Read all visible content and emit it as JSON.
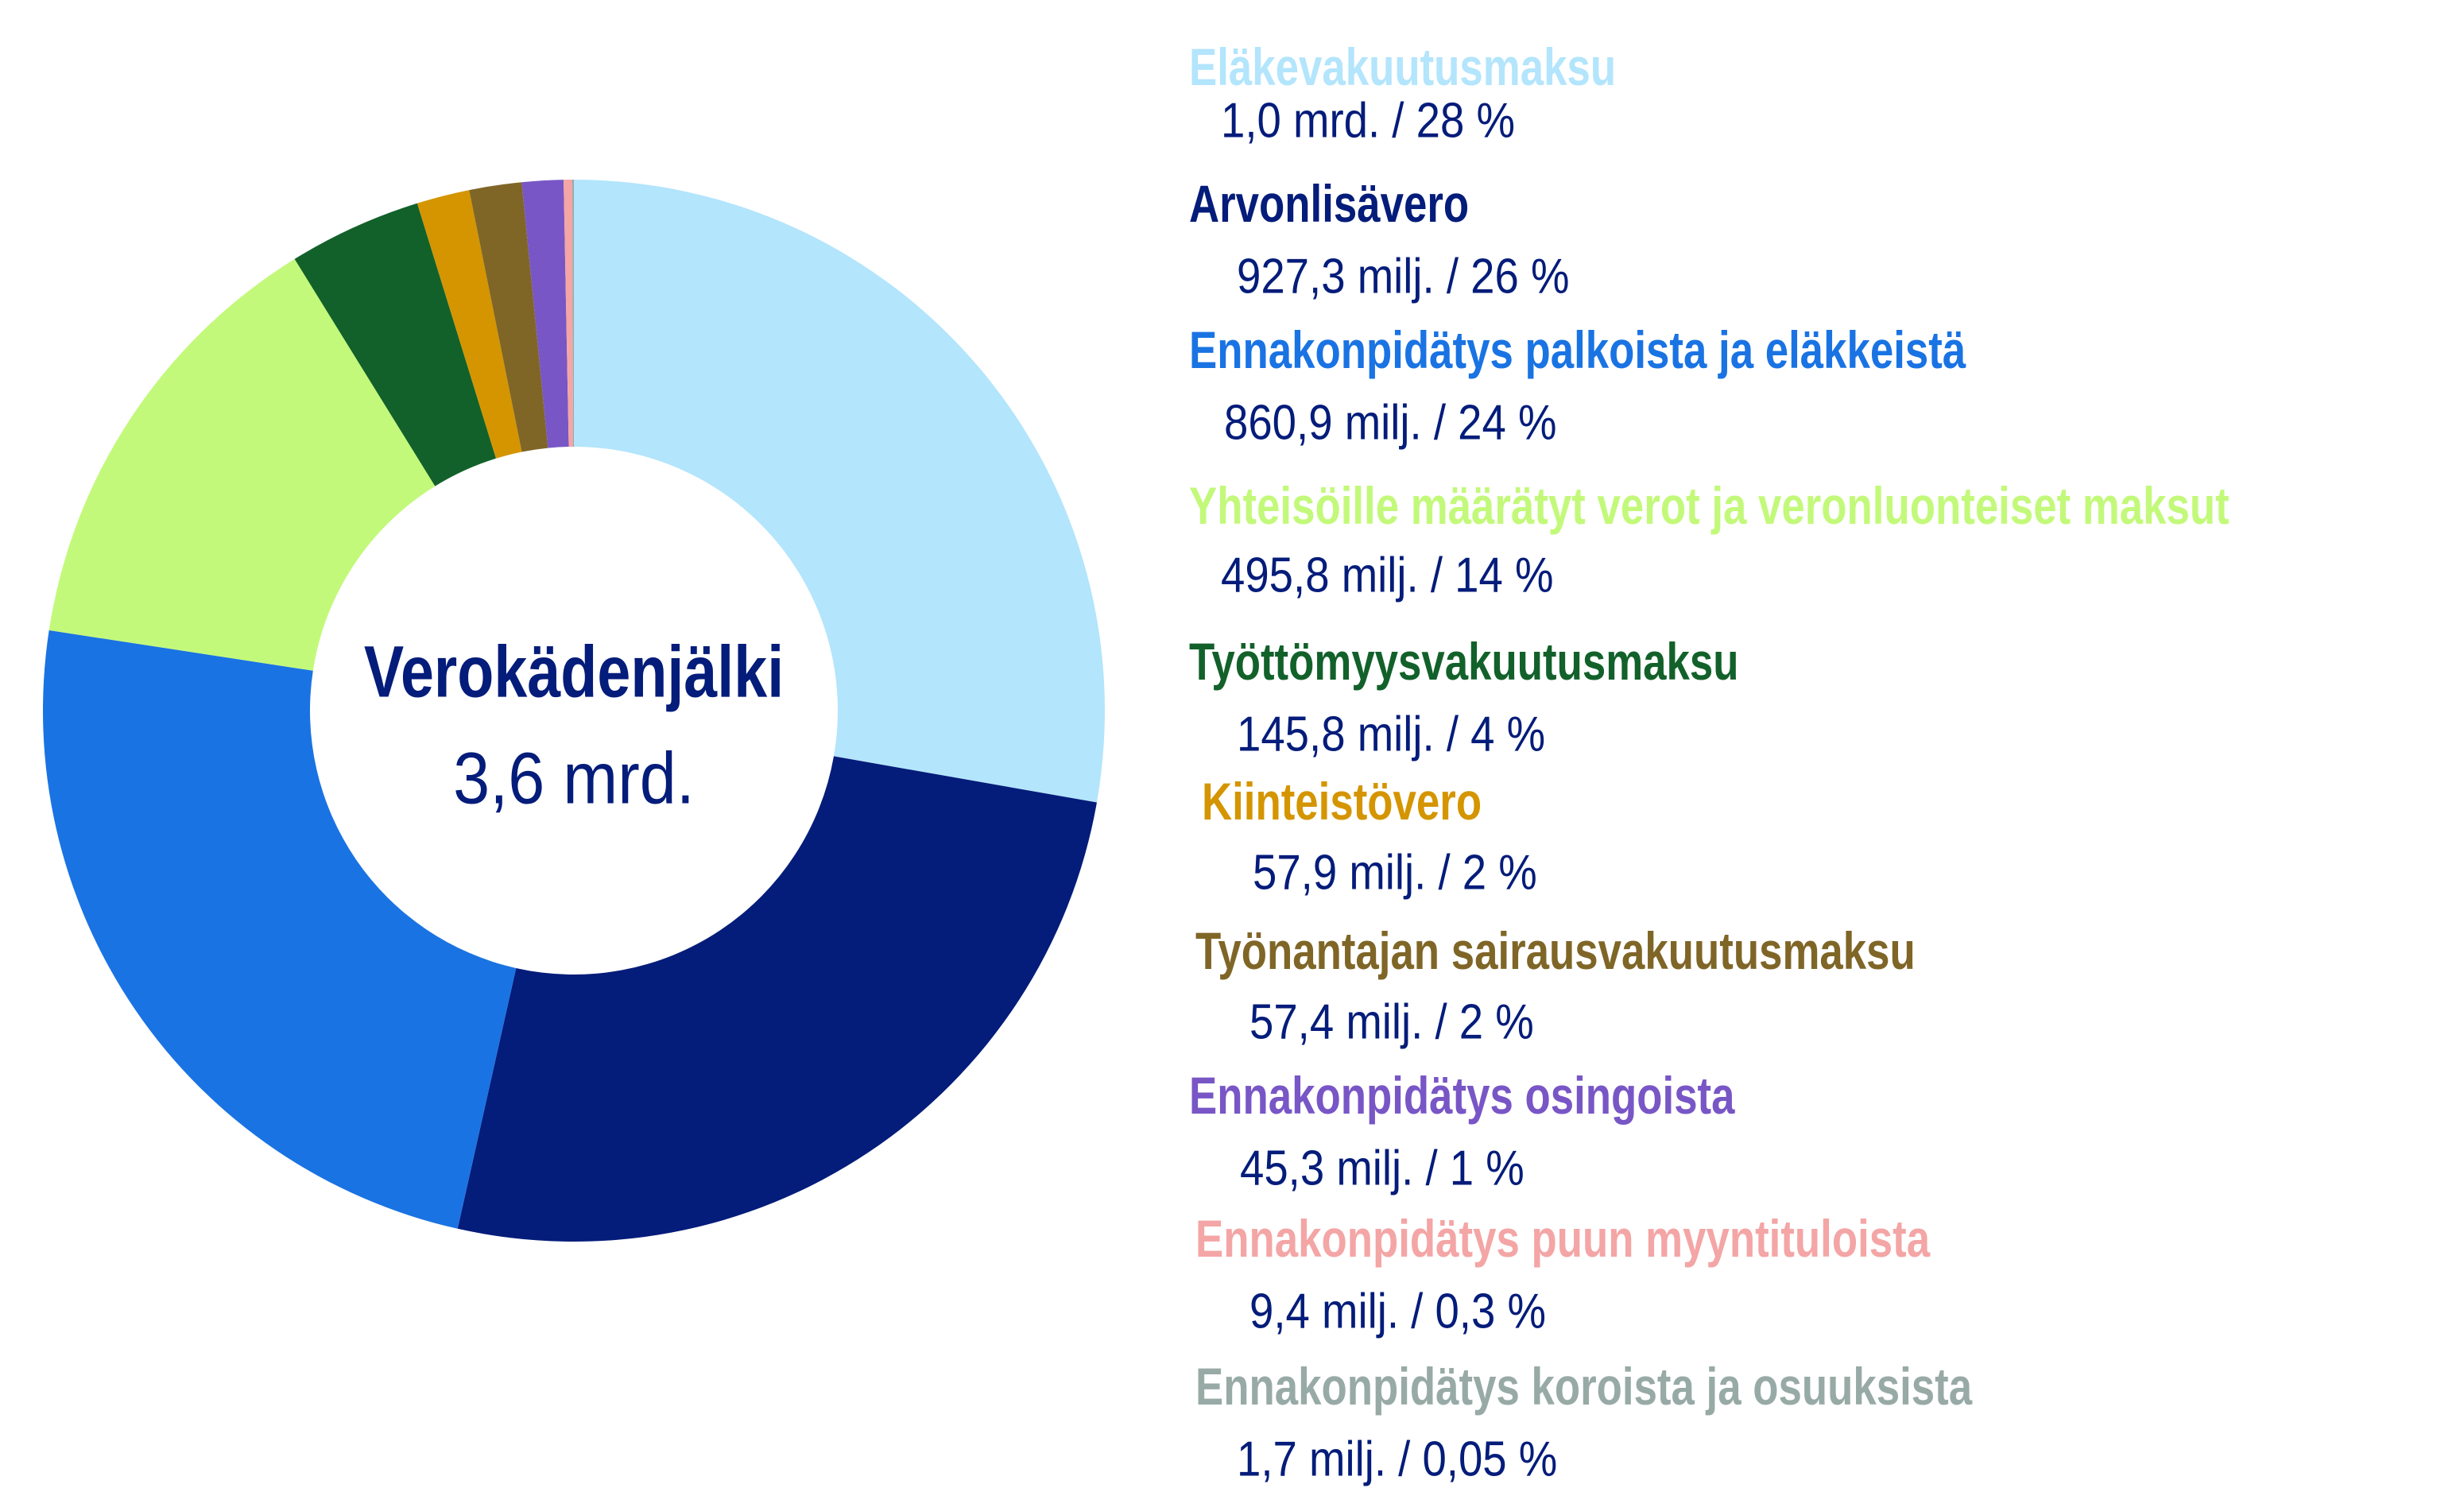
{
  "chart_data": {
    "type": "pie",
    "donut": true,
    "center_title": "Verokädenjälki",
    "center_value": "3,6 mrd.",
    "unit": "milj.",
    "series": [
      {
        "name": "Eläkevakuutusmaksu",
        "value": 1000,
        "display": "1,0 mrd. / 28 %",
        "color": "#b3e5fc"
      },
      {
        "name": "Arvonlisävero",
        "value": 927.3,
        "display": "927,3 milj. / 26 %",
        "color": "#041c7a"
      },
      {
        "name": "Ennakonpidätys palkoista ja eläkkeistä",
        "value": 860.9,
        "display": "860,9 milj. / 24 %",
        "color": "#1a73e3"
      },
      {
        "name": "Yhteisöille määrätyt verot ja veronluonteiset maksut",
        "value": 495.8,
        "display": "495,8 milj. / 14 %",
        "color": "#c3f97a"
      },
      {
        "name": "Työttömyysvakuutusmaksu",
        "value": 145.8,
        "display": "145,8 milj. / 4 %",
        "color": "#12612a"
      },
      {
        "name": "Kiinteistövero",
        "value": 57.9,
        "display": "57,9 milj. / 2 %",
        "color": "#d49500"
      },
      {
        "name": "Työnantajan sairausvakuutusmaksu",
        "value": 57.4,
        "display": "57,4 milj. / 2 %",
        "color": "#7f6627"
      },
      {
        "name": "Ennakonpidätys osingoista",
        "value": 45.3,
        "display": "45,3 milj. / 1 %",
        "color": "#7856c6"
      },
      {
        "name": "Ennakonpidätys puun myyntituloista",
        "value": 9.4,
        "display": "9,4 milj. / 0,3 %",
        "color": "#f4a5a5"
      },
      {
        "name": "Ennakonpidätys koroista ja osuuksista",
        "value": 1.7,
        "display": "1,7 milj. / 0,05 %",
        "color": "#98aaa6"
      }
    ],
    "legend_placement": "right"
  }
}
